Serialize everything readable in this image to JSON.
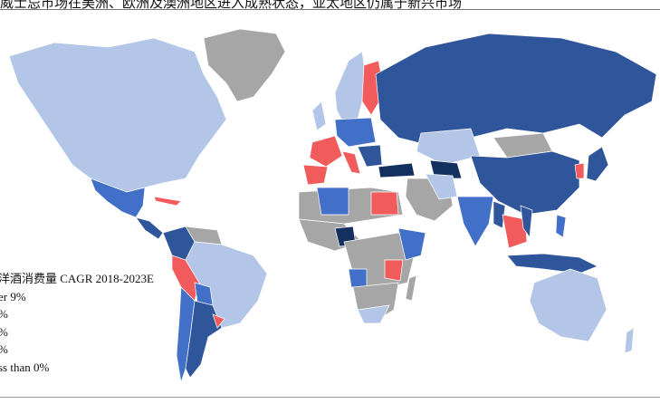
{
  "header": {
    "title": "威士忌市场在美洲、欧洲及澳洲地区进入成熟状态，亚太地区仍属于新兴市场"
  },
  "legend": {
    "title": "洋酒消费量 CAGR 2018-2023E",
    "items": [
      {
        "label": "er 9%",
        "color": "#14305f"
      },
      {
        "label": "%",
        "color": "#2f559a"
      },
      {
        "label": "%",
        "color": "#4270c8"
      },
      {
        "label": "%",
        "color": "#b3c6e7"
      },
      {
        "label": "ss than 0%",
        "color": "#f25b5b"
      }
    ]
  },
  "colors": {
    "over9": "#14305f",
    "high": "#2f559a",
    "mid": "#4270c8",
    "low": "#b3c6e7",
    "negative": "#f25b5b",
    "nodata": "#a6a6a6"
  }
}
